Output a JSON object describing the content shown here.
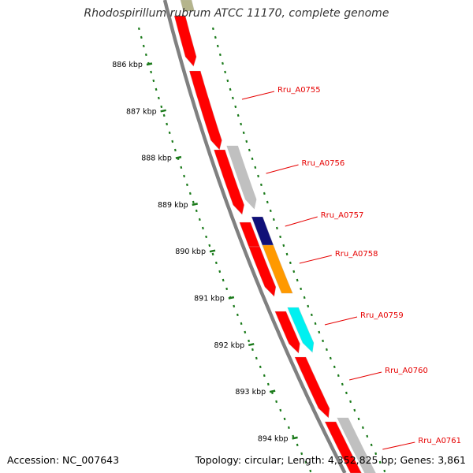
{
  "title": "Rhodospirillum rubrum ATCC 11170, complete genome",
  "footer": {
    "accession": "Accession: NC_007643",
    "summary": "Topology: circular; Length: 4,352,825 bp; Genes: 3,861"
  },
  "colors": {
    "forward": "#ff0000",
    "backbone": "#808080",
    "tick": "#1a7a1a",
    "label": "#e60000",
    "gray": "#c0c0c0",
    "navy": "#101078",
    "orange": "#ff9900",
    "cyan": "#00f0f0",
    "olive": "#b4b48c"
  },
  "ticks": [
    {
      "kbp": 886,
      "label": "886 kbp"
    },
    {
      "kbp": 887,
      "label": "887 kbp"
    },
    {
      "kbp": 888,
      "label": "888 kbp"
    },
    {
      "kbp": 889,
      "label": "889 kbp"
    },
    {
      "kbp": 890,
      "label": "890 kbp"
    },
    {
      "kbp": 891,
      "label": "891 kbp"
    },
    {
      "kbp": 892,
      "label": "892 kbp"
    },
    {
      "kbp": 893,
      "label": "893 kbp"
    },
    {
      "kbp": 894,
      "label": "894 kbp"
    }
  ],
  "labeled_genes": [
    {
      "label": "Rru_A0755"
    },
    {
      "label": "Rru_A0756"
    },
    {
      "label": "Rru_A0757"
    },
    {
      "label": "Rru_A0758"
    },
    {
      "label": "Rru_A0759"
    },
    {
      "label": "Rru_A0760"
    },
    {
      "label": "Rru_A0761"
    }
  ]
}
